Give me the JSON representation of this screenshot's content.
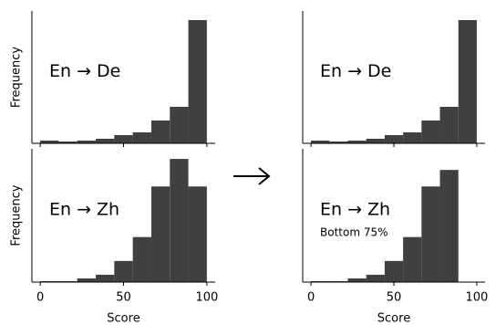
{
  "chart_data": [
    {
      "type": "histogram",
      "annotation": "En → De",
      "ylabel": "Frequency",
      "color": "#404040",
      "bins": [
        0,
        11.11,
        22.22,
        33.33,
        44.44,
        55.56,
        66.67,
        77.78,
        88.89,
        100
      ],
      "values": [
        3,
        2,
        3,
        5,
        9,
        12,
        25,
        40,
        135
      ],
      "xlim": [
        -5,
        105
      ],
      "ylim": [
        0,
        145
      ]
    },
    {
      "type": "histogram",
      "annotation": "En → De",
      "color": "#404040",
      "bins": [
        0,
        11.11,
        22.22,
        33.33,
        44.44,
        55.56,
        66.67,
        77.78,
        88.89,
        100
      ],
      "values": [
        3,
        2,
        3,
        5,
        9,
        12,
        25,
        40,
        135
      ],
      "xlim": [
        -5,
        105
      ],
      "ylim": [
        0,
        145
      ]
    },
    {
      "type": "histogram",
      "annotation": "En → Zh",
      "ylabel": "Frequency",
      "xlabel": "Score",
      "color": "#404040",
      "bins": [
        0,
        11.11,
        22.22,
        33.33,
        44.44,
        55.56,
        66.67,
        77.78,
        88.89,
        100
      ],
      "values": [
        1,
        1,
        4,
        8,
        23,
        49,
        104,
        134,
        104
      ],
      "xlim": [
        -5,
        105
      ],
      "ylim": [
        0,
        145
      ],
      "xticks": [
        0,
        50,
        100
      ]
    },
    {
      "type": "histogram",
      "annotation": "En → Zh",
      "subannotation": "Bottom 75%",
      "xlabel": "Score",
      "color": "#404040",
      "bins": [
        0,
        11.11,
        22.22,
        33.33,
        44.44,
        55.56,
        66.67,
        77.78,
        88.89,
        100
      ],
      "values": [
        1,
        1,
        4,
        8,
        23,
        49,
        104,
        122,
        0
      ],
      "xlim": [
        -5,
        105
      ],
      "ylim": [
        0,
        145
      ],
      "xticks": [
        0,
        50,
        100
      ]
    }
  ]
}
